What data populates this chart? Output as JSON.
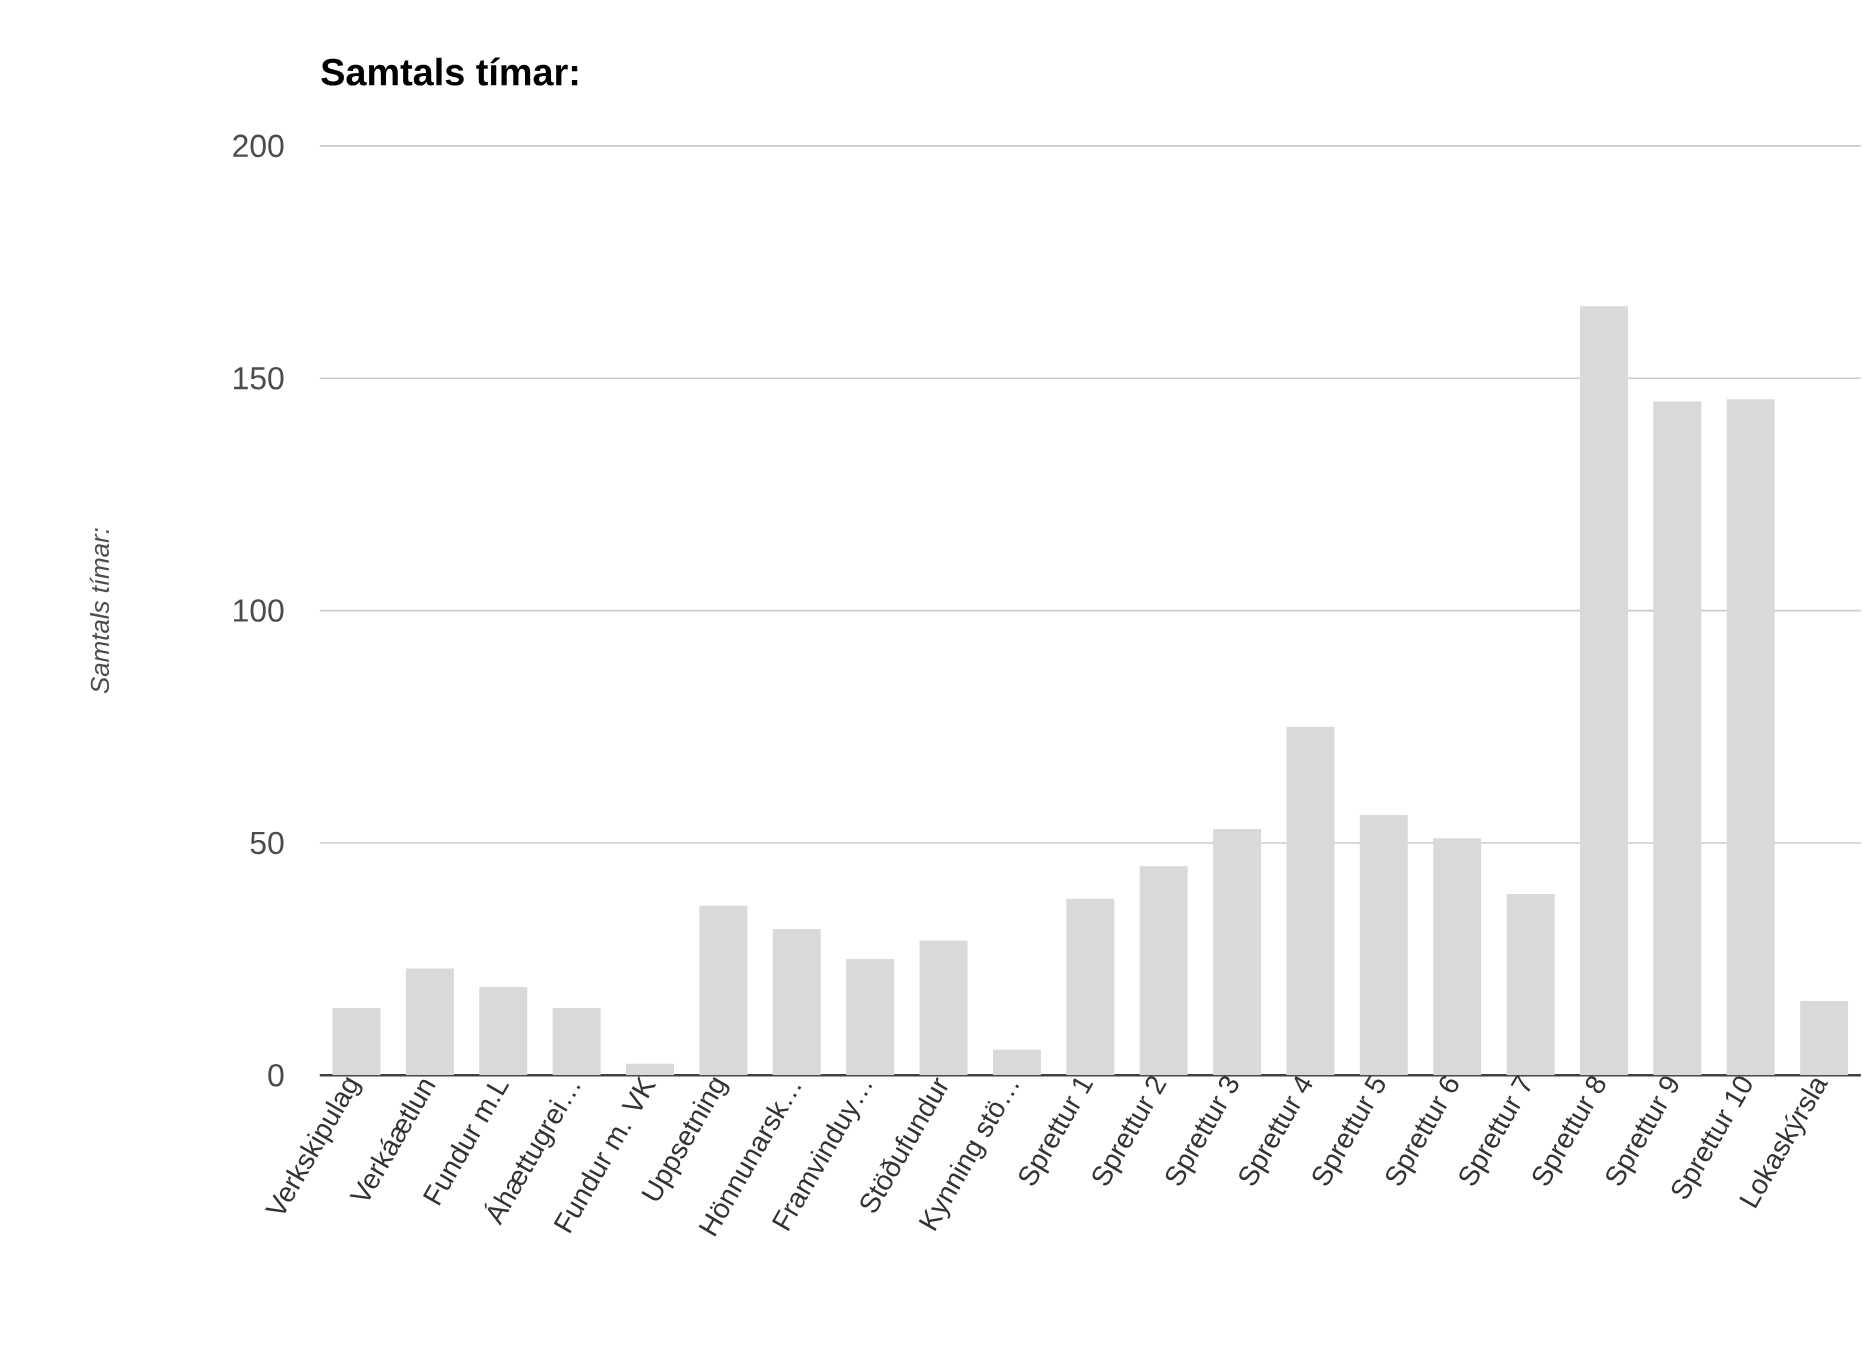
{
  "chart_data": {
    "type": "bar",
    "title": "Samtals tímar:",
    "ylabel": "Samtals tímar:",
    "categories": [
      "Verkskipulag",
      "Verkáætlun",
      "Fundur m.L",
      "Áhættugrei…",
      "Fundur m. VK",
      "Uppsetning",
      "Hönnunarsk…",
      "Framvinduy…",
      "Stöðufundur",
      "Kynning stö…",
      "Sprettur 1",
      "Sprettur 2",
      "Sprettur 3",
      "Sprettur 4",
      "Sprettur 5",
      "Sprettur 6",
      "Sprettur 7",
      "Sprettur 8",
      "Sprettur 9",
      "Sprettur 10",
      "Lokaskýrsla"
    ],
    "values": [
      14.5,
      23,
      19,
      14.5,
      2.5,
      36.5,
      31.5,
      25,
      29,
      5.5,
      38,
      45,
      53,
      75,
      56,
      51,
      39,
      165.5,
      145,
      145.5,
      16
    ],
    "color": "#d9d9d9",
    "ylim": [
      0,
      200
    ],
    "yticks": [
      0,
      50,
      100,
      150,
      200
    ],
    "grid": "y"
  }
}
